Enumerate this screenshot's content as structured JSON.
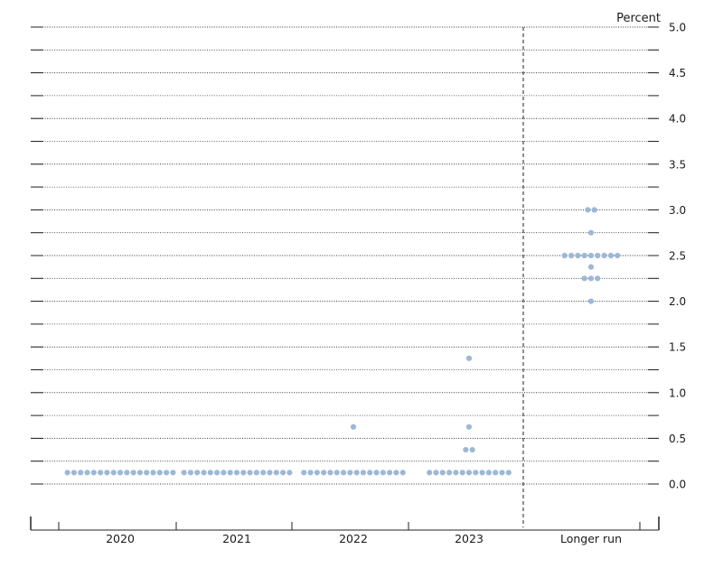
{
  "chart_data": {
    "type": "scatter",
    "unit_label": "Percent",
    "y_range": [
      0.0,
      5.0
    ],
    "y_major_ticks": [
      0.0,
      0.5,
      1.0,
      1.5,
      2.0,
      2.5,
      3.0,
      3.5,
      4.0,
      4.5,
      5.0
    ],
    "y_tick_labels": [
      "0.0",
      "0.5",
      "1.0",
      "1.5",
      "2.0",
      "2.5",
      "3.0",
      "3.5",
      "4.0",
      "4.5",
      "5.0"
    ],
    "y_minor_step": 0.25,
    "categories": [
      "2020",
      "2021",
      "2022",
      "2023",
      "Longer run"
    ],
    "dot_color": "#9db8d6",
    "series": [
      {
        "category": "2020",
        "points": [
          {
            "y": 0.125,
            "count": 17
          }
        ]
      },
      {
        "category": "2021",
        "points": [
          {
            "y": 0.125,
            "count": 17
          }
        ]
      },
      {
        "category": "2022",
        "points": [
          {
            "y": 0.125,
            "count": 16
          },
          {
            "y": 0.625,
            "count": 1
          }
        ]
      },
      {
        "category": "2023",
        "points": [
          {
            "y": 0.125,
            "count": 13
          },
          {
            "y": 0.375,
            "count": 2
          },
          {
            "y": 0.625,
            "count": 1
          },
          {
            "y": 1.375,
            "count": 1
          }
        ]
      },
      {
        "category": "Longer run",
        "points": [
          {
            "y": 2.0,
            "count": 1
          },
          {
            "y": 2.25,
            "count": 3
          },
          {
            "y": 2.375,
            "count": 1
          },
          {
            "y": 2.5,
            "count": 9
          },
          {
            "y": 2.75,
            "count": 1
          },
          {
            "y": 3.0,
            "count": 2
          }
        ]
      }
    ]
  }
}
